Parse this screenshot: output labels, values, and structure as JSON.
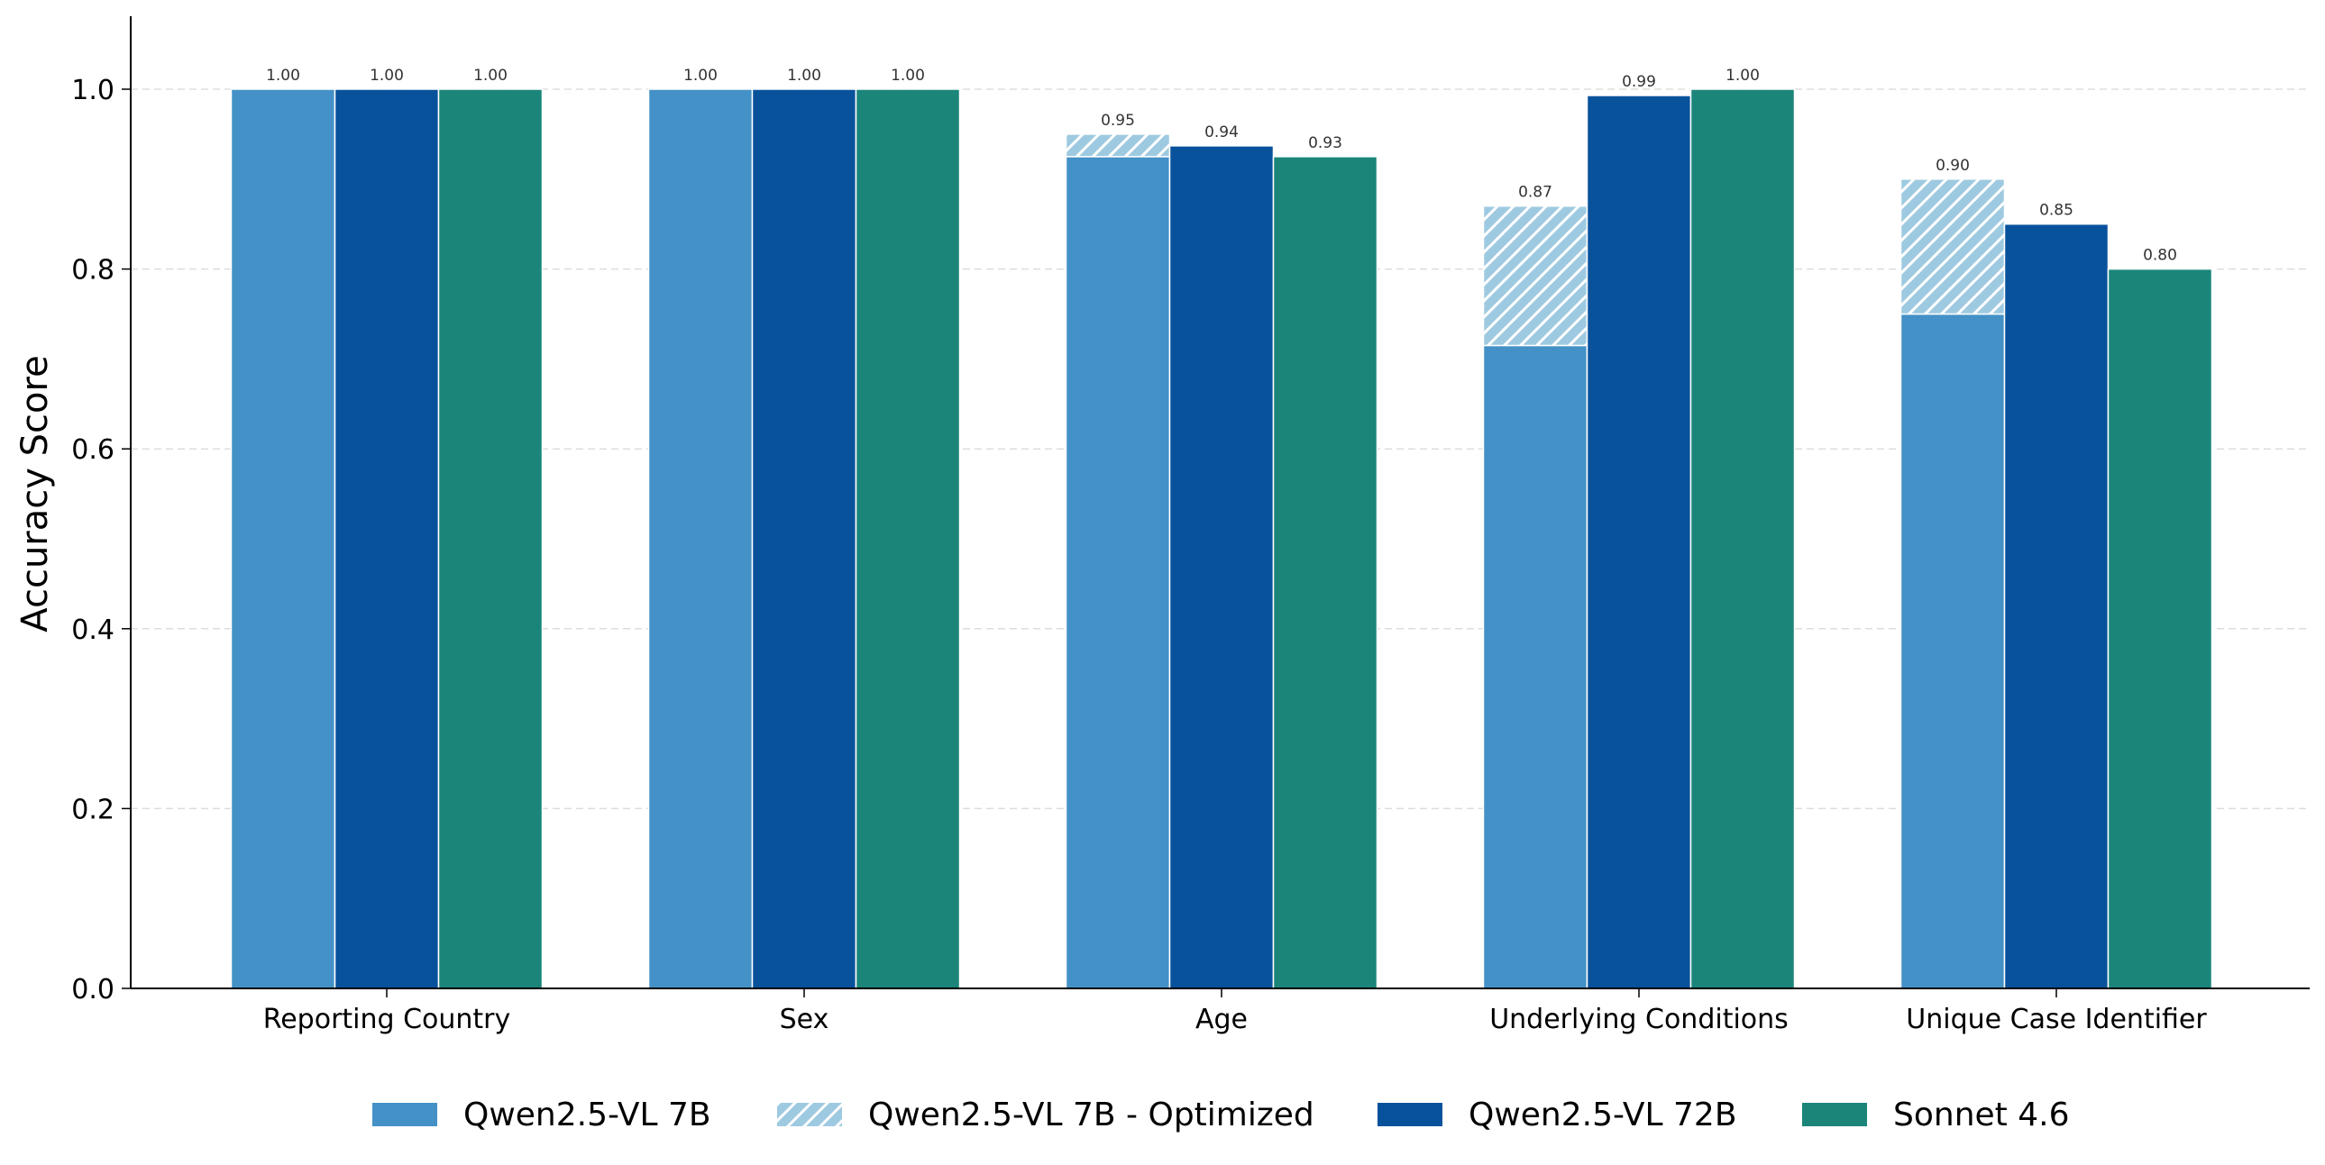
{
  "chart_data": {
    "type": "bar",
    "title": "",
    "xlabel": "",
    "ylabel": "Accuracy Score",
    "ylim": [
      0,
      1.08
    ],
    "yticks": [
      "0.0",
      "0.2",
      "0.4",
      "0.6",
      "0.8",
      "1.0"
    ],
    "grid": "y-dashed",
    "legend_position": "bottom-center",
    "categories": [
      "Reporting Country",
      "Sex",
      "Age",
      "Underlying Conditions",
      "Unique Case Identifier"
    ],
    "series": [
      {
        "name": "Qwen2.5-VL 7B",
        "color": "#4391c6",
        "values": [
          1.0,
          1.0,
          0.925,
          0.715,
          0.75
        ],
        "labels": [
          "",
          "",
          "",
          "",
          ""
        ]
      },
      {
        "name": "Qwen2.5-VL 7B - Optimized",
        "color": "#9ecae1",
        "pattern": "hatched",
        "stacked_on": "Qwen2.5-VL 7B",
        "totals": [
          1.0,
          1.0,
          0.95,
          0.87,
          0.9
        ],
        "labels": [
          "1.00",
          "1.00",
          "0.95",
          "0.87",
          "0.90"
        ]
      },
      {
        "name": "Qwen2.5-VL 72B",
        "color": "#08529c",
        "values": [
          1.0,
          1.0,
          0.937,
          0.993,
          0.85
        ],
        "labels": [
          "1.00",
          "1.00",
          "0.94",
          "0.99",
          "0.85"
        ]
      },
      {
        "name": "Sonnet 4.6",
        "color": "#1b857a",
        "values": [
          1.0,
          1.0,
          0.925,
          1.0,
          0.8
        ],
        "labels": [
          "1.00",
          "1.00",
          "0.93",
          "1.00",
          "0.80"
        ]
      }
    ]
  }
}
